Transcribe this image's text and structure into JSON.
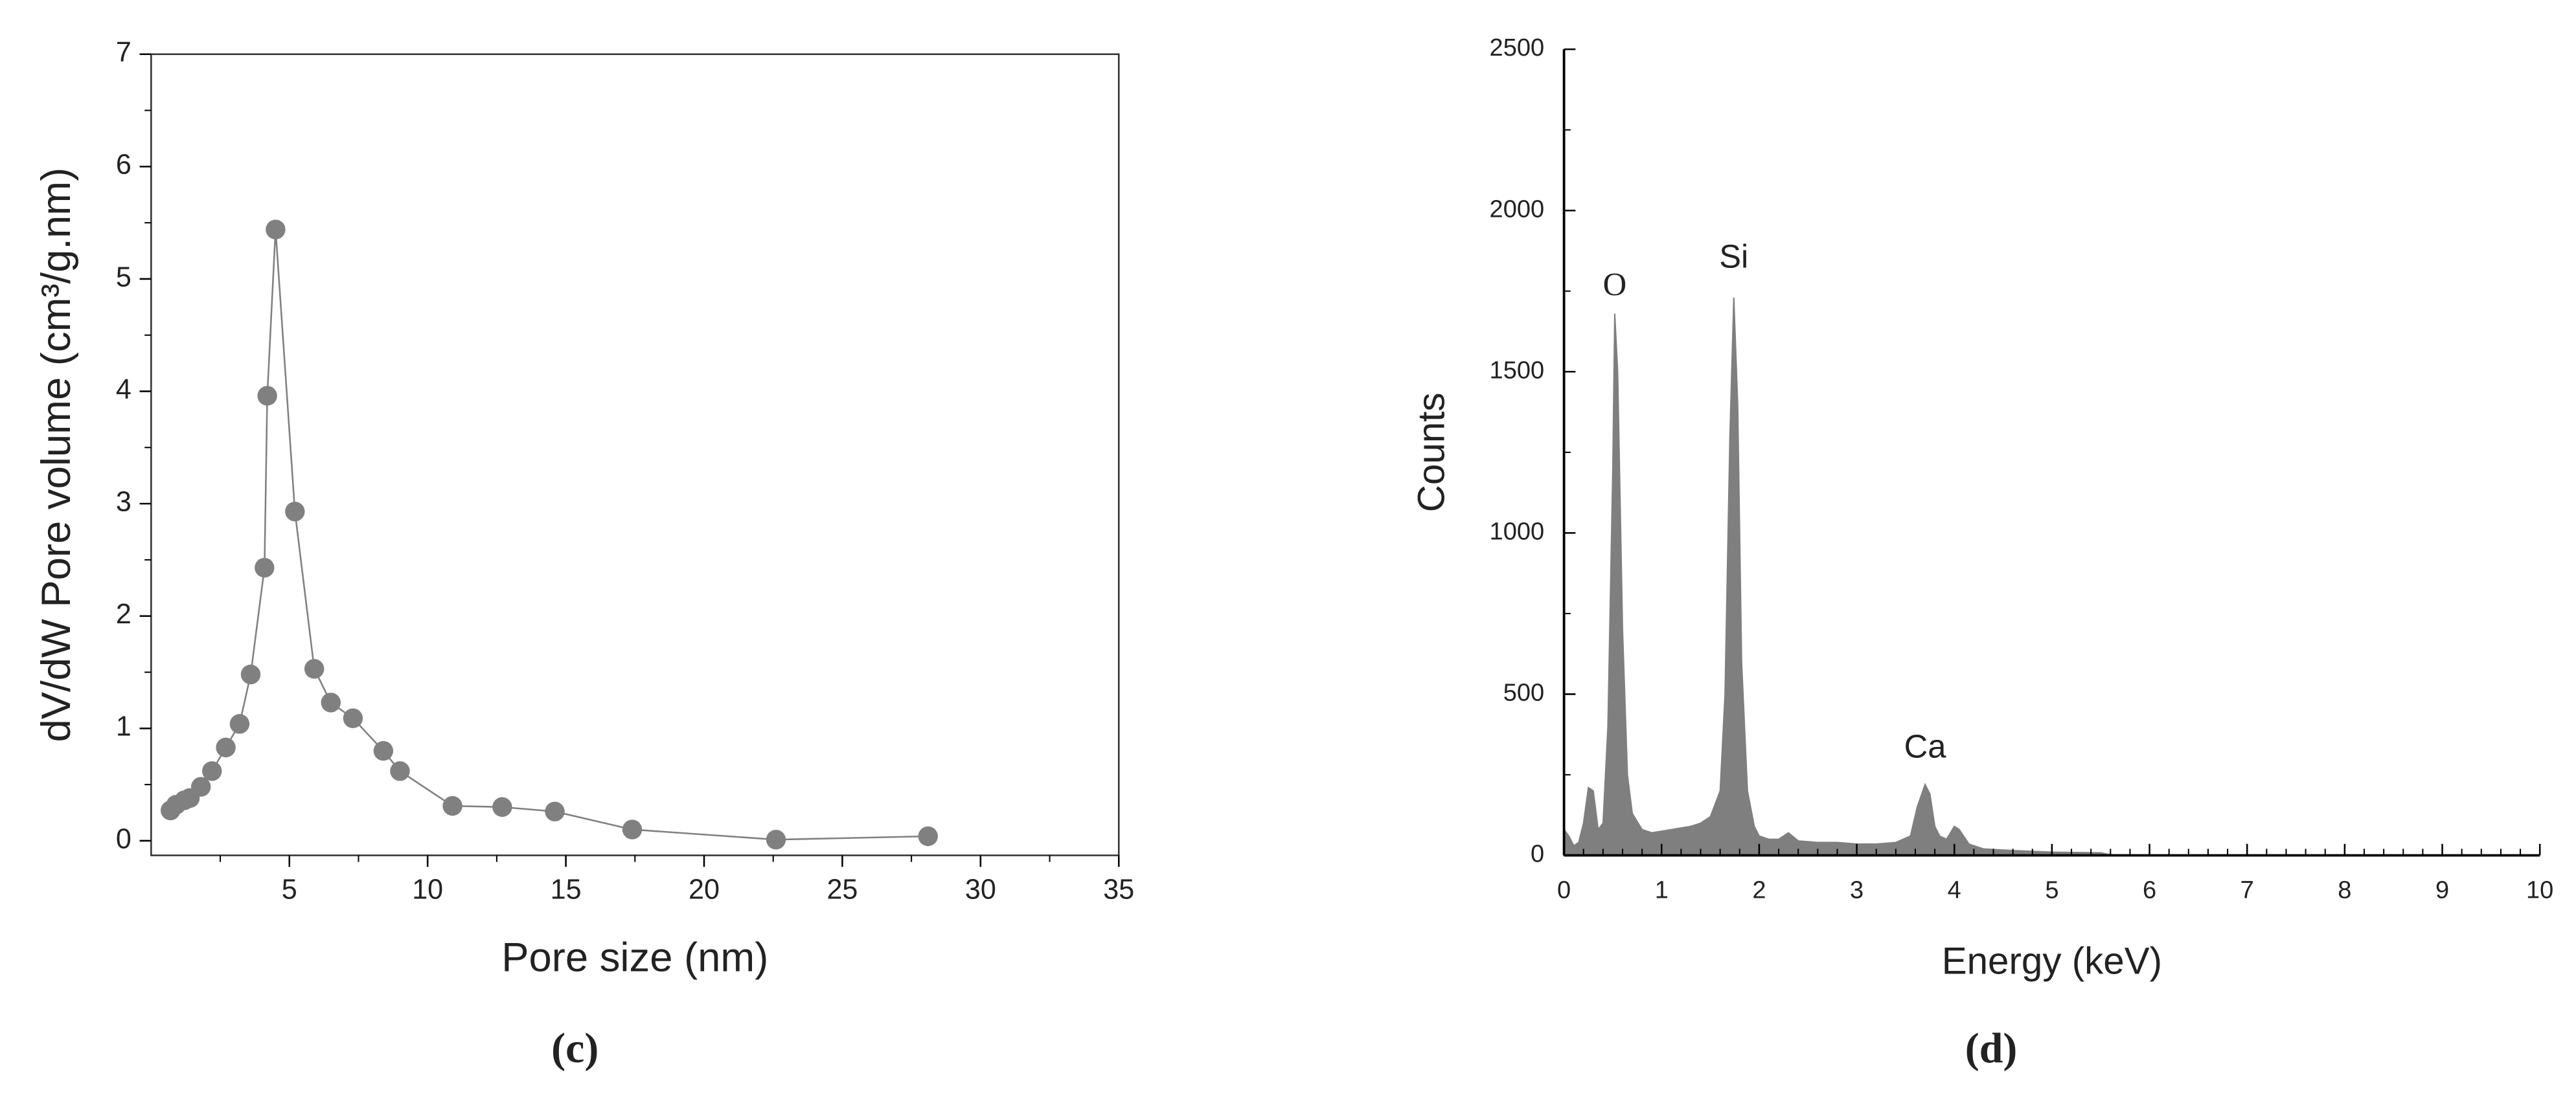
{
  "chart_data": [
    {
      "type": "line",
      "xlabel": "Pore size (nm)",
      "ylabel": "dV/dW Pore volume (cm³/g.nm)",
      "caption": "(c)",
      "x": [
        0.7,
        0.9,
        1.2,
        1.4,
        1.8,
        2.2,
        2.7,
        3.2,
        3.6,
        4.1,
        4.2,
        4.5,
        5.2,
        5.9,
        6.5,
        7.3,
        8.4,
        9.0,
        10.9,
        12.7,
        14.6,
        17.4,
        22.6,
        28.1
      ],
      "values": [
        0.27,
        0.32,
        0.36,
        0.38,
        0.48,
        0.62,
        0.83,
        1.04,
        1.48,
        2.43,
        3.96,
        5.44,
        2.93,
        1.53,
        1.23,
        1.09,
        0.8,
        0.62,
        0.31,
        0.3,
        0.26,
        0.1,
        0.01,
        0.04
      ],
      "color": "#808080",
      "xlim": [
        0,
        35
      ],
      "xticks": [
        5,
        10,
        15,
        20,
        25,
        30,
        35
      ],
      "ylim": [
        -0.13,
        7
      ],
      "yticks": [
        0,
        1,
        2,
        3,
        4,
        5,
        6,
        7
      ]
    },
    {
      "type": "area",
      "xlabel": "Energy (keV)",
      "ylabel": "Counts",
      "caption": "(d)",
      "x": [
        0,
        0.05,
        0.1,
        0.15,
        0.2,
        0.25,
        0.3,
        0.35,
        0.4,
        0.45,
        0.5,
        0.52,
        0.55,
        0.6,
        0.65,
        0.7,
        0.8,
        0.9,
        1.0,
        1.1,
        1.2,
        1.3,
        1.4,
        1.5,
        1.6,
        1.65,
        1.7,
        1.74,
        1.78,
        1.82,
        1.88,
        1.95,
        2.0,
        2.1,
        2.2,
        2.3,
        2.4,
        2.6,
        2.8,
        3.0,
        3.2,
        3.4,
        3.55,
        3.62,
        3.7,
        3.75,
        3.8,
        3.85,
        3.92,
        4.0,
        4.05,
        4.15,
        4.3,
        4.6,
        5.0,
        5.5,
        5.6,
        6,
        10
      ],
      "values": [
        80,
        60,
        30,
        40,
        100,
        210,
        200,
        80,
        100,
        400,
        1200,
        1680,
        1500,
        700,
        250,
        130,
        80,
        70,
        75,
        80,
        85,
        90,
        100,
        120,
        200,
        500,
        1300,
        1730,
        1400,
        600,
        200,
        90,
        60,
        50,
        50,
        70,
        45,
        40,
        40,
        35,
        35,
        40,
        60,
        150,
        220,
        190,
        90,
        60,
        50,
        90,
        80,
        35,
        20,
        15,
        10,
        8,
        2,
        0,
        0
      ],
      "color": "#7f7f7f",
      "annotations": [
        {
          "text": "O",
          "x": 0.52,
          "y": 1760
        },
        {
          "text": "Si",
          "x": 1.74,
          "y": 1850
        },
        {
          "text": "Ca",
          "x": 3.7,
          "y": 330
        }
      ],
      "xlim": [
        0,
        10
      ],
      "xticks": [
        0,
        1,
        2,
        3,
        4,
        5,
        6,
        7,
        8,
        9,
        10
      ],
      "ylim": [
        0,
        2500
      ],
      "yticks": [
        0,
        500,
        1000,
        1500,
        2000,
        2500
      ]
    }
  ]
}
